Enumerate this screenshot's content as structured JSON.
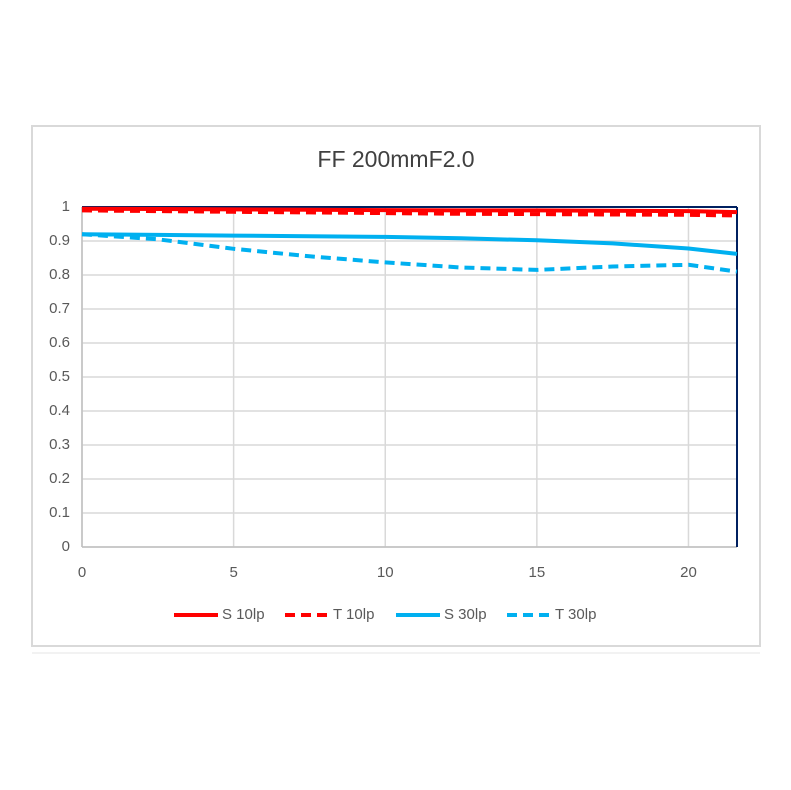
{
  "chart_data": {
    "type": "line",
    "title": "FF  200mmF2.0",
    "x": [
      0,
      2.5,
      5,
      7.5,
      10,
      12.5,
      15,
      17.5,
      20,
      21.6
    ],
    "series": [
      {
        "name": "S 10lp",
        "color": "#ff0000",
        "dashed": false,
        "values": [
          0.995,
          0.994,
          0.993,
          0.992,
          0.991,
          0.99,
          0.99,
          0.989,
          0.988,
          0.985
        ]
      },
      {
        "name": "T 10lp",
        "color": "#ff0000",
        "dashed": true,
        "values": [
          0.99,
          0.988,
          0.986,
          0.984,
          0.982,
          0.98,
          0.979,
          0.978,
          0.977,
          0.975
        ]
      },
      {
        "name": "S 30lp",
        "color": "#00b0f0",
        "dashed": false,
        "values": [
          0.92,
          0.918,
          0.916,
          0.914,
          0.912,
          0.908,
          0.902,
          0.893,
          0.878,
          0.862
        ]
      },
      {
        "name": "T 30lp",
        "color": "#00b0f0",
        "dashed": true,
        "values": [
          0.92,
          0.905,
          0.877,
          0.855,
          0.837,
          0.822,
          0.815,
          0.825,
          0.83,
          0.81
        ]
      }
    ],
    "xlim": [
      0,
      21.6
    ],
    "xticks": [
      0,
      5,
      10,
      15,
      20
    ],
    "ylim": [
      0,
      1
    ],
    "yticks": [
      0,
      0.1,
      0.2,
      0.3,
      0.4,
      0.5,
      0.6,
      0.7,
      0.8,
      0.9,
      1
    ],
    "grid": true,
    "legend": "bottom"
  }
}
